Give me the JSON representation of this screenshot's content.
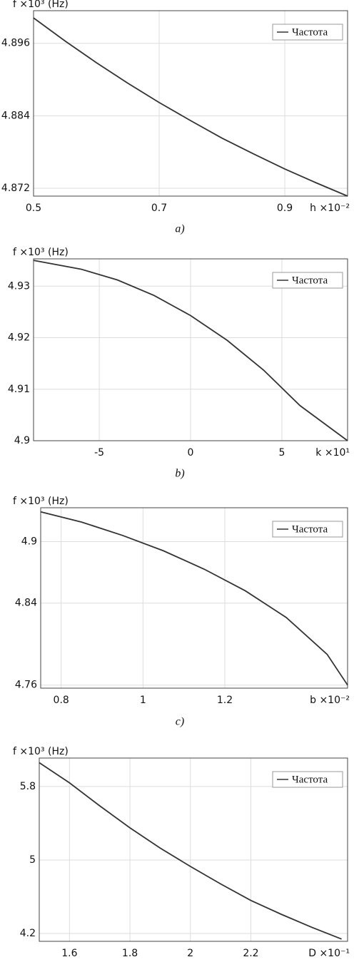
{
  "chart_data": [
    {
      "type": "line",
      "caption": "a)",
      "y_label": "f ×10³ (Hz)",
      "x_label": "h ×10⁻²",
      "x": [
        0.5,
        0.55,
        0.6,
        0.65,
        0.7,
        0.75,
        0.8,
        0.85,
        0.9,
        0.95,
        1.0
      ],
      "series": [
        {
          "name": "Частота",
          "color": "#333333",
          "values": [
            4.9002,
            4.8964,
            4.8928,
            4.8894,
            4.8862,
            4.8832,
            4.8803,
            4.8777,
            4.8752,
            4.8729,
            4.8707
          ]
        }
      ],
      "xlim": [
        0.5,
        1.0
      ],
      "xticks": [
        0.5,
        0.7,
        0.9
      ],
      "ylim": [
        4.8707,
        4.9014
      ],
      "yticks": [
        4.872,
        4.884,
        4.896
      ],
      "grid": true,
      "legend": "top-right"
    },
    {
      "type": "line",
      "caption": "b)",
      "y_label": "f ×10³ (Hz)",
      "x_label": "k ×10¹",
      "x": [
        -8.6,
        -6,
        -4,
        -2,
        0,
        2,
        4,
        6,
        8.6
      ],
      "series": [
        {
          "name": "Частота",
          "color": "#333333",
          "values": [
            4.935,
            4.9333,
            4.9312,
            4.9282,
            4.9243,
            4.9195,
            4.9137,
            4.9068,
            4.9
          ]
        }
      ],
      "xlim": [
        -8.6,
        8.6
      ],
      "xticks": [
        -5,
        0,
        5
      ],
      "ylim": [
        4.9,
        4.9353
      ],
      "yticks": [
        4.9,
        4.91,
        4.92,
        4.93
      ],
      "grid": true,
      "legend": "top-right"
    },
    {
      "type": "line",
      "caption": "c)",
      "y_label": "f ×10³ (Hz)",
      "x_label": "b ×10⁻²",
      "x": [
        0.75,
        0.85,
        0.95,
        1.05,
        1.15,
        1.25,
        1.35,
        1.45,
        1.5
      ],
      "series": [
        {
          "name": "Частота",
          "color": "#333333",
          "values": [
            4.929,
            4.919,
            4.906,
            4.891,
            4.873,
            4.852,
            4.826,
            4.79,
            4.76
          ]
        }
      ],
      "xlim": [
        0.75,
        1.5
      ],
      "xticks": [
        0.8,
        1,
        1.2
      ],
      "ylim": [
        4.757,
        4.933
      ],
      "yticks": [
        4.76,
        4.84,
        4.9
      ],
      "grid": true,
      "legend": "top-right"
    },
    {
      "type": "line",
      "y_label": "f ×10³ (Hz)",
      "x_label": "D ×10⁻¹",
      "x": [
        1.5,
        1.6,
        1.7,
        1.8,
        1.9,
        2.0,
        2.1,
        2.2,
        2.3,
        2.4,
        2.5
      ],
      "series": [
        {
          "name": "Частота",
          "color": "#333333",
          "values": [
            6.06,
            5.84,
            5.59,
            5.35,
            5.13,
            4.93,
            4.74,
            4.56,
            4.41,
            4.27,
            4.14
          ]
        }
      ],
      "xlim": [
        1.5,
        2.52
      ],
      "xticks": [
        1.6,
        1.8,
        2,
        2.2
      ],
      "ylim": [
        4.115,
        6.11
      ],
      "yticks": [
        4.2,
        5,
        5.8
      ],
      "grid": true,
      "legend": "top-right"
    }
  ]
}
